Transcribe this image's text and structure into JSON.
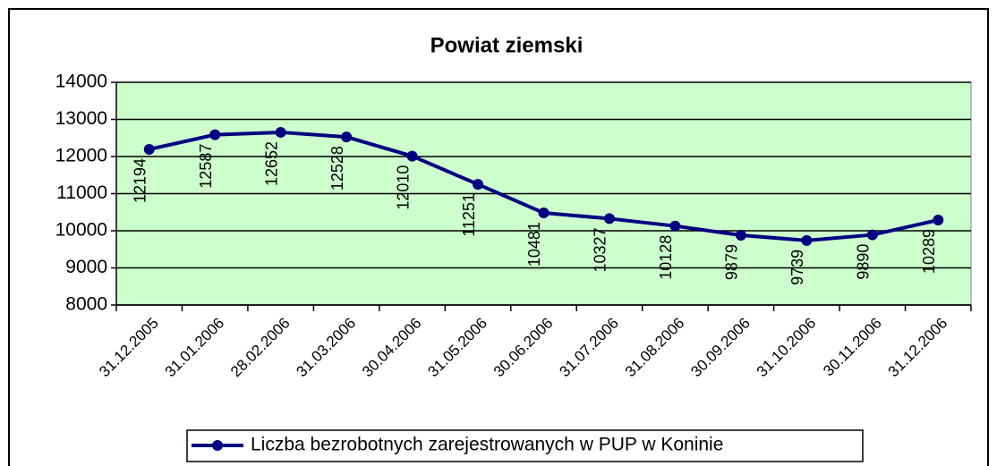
{
  "chart_data": {
    "type": "line",
    "title": "Powiat  ziemski",
    "categories": [
      "31.12.2005",
      "31.01.2006",
      "28.02.2006",
      "31.03.2006",
      "30.04.2006",
      "31.05.2006",
      "30.06.2006",
      "31.07.2006",
      "31.08.2006",
      "30.09.2006",
      "31.10.2006",
      "30.11.2006",
      "31.12.2006"
    ],
    "series": [
      {
        "name": "Liczba bezrobotnych zarejestrowanych w PUP w Koninie",
        "color": "#000080",
        "values": [
          12194,
          12587,
          12652,
          12528,
          12010,
          11251,
          10481,
          10327,
          10128,
          9879,
          9739,
          9890,
          10289
        ]
      }
    ],
    "ylim": [
      8000,
      14000
    ],
    "yticks": [
      8000,
      9000,
      10000,
      11000,
      12000,
      13000,
      14000
    ],
    "grid": true,
    "legend": "bottom",
    "plot_background": "#ccffcc"
  }
}
